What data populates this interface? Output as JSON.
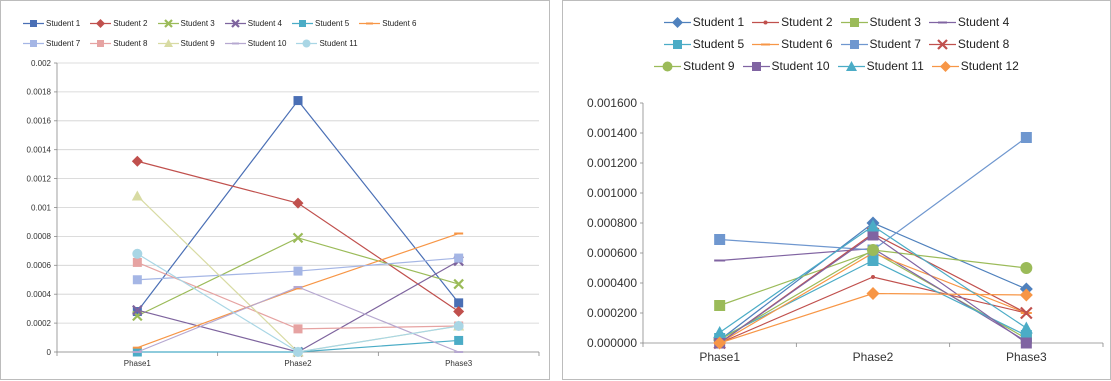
{
  "chart_data": [
    {
      "type": "line",
      "categories": [
        "Phase1",
        "Phase2",
        "Phase3"
      ],
      "ylim": [
        0,
        0.002
      ],
      "yticks": [
        "0",
        "0.0002",
        "0.0004",
        "0.0006",
        "0.0008",
        "0.001",
        "0.0012",
        "0.0014",
        "0.0016",
        "0.0018",
        "0.002"
      ],
      "grid": true,
      "legend": "top",
      "series": [
        {
          "name": "Student 1",
          "values": [
            0.00028,
            0.00174,
            0.00034
          ],
          "color": "#4a6fb5",
          "marker": "square"
        },
        {
          "name": "Student 2",
          "values": [
            0.00132,
            0.00103,
            0.00028
          ],
          "color": "#c0504d",
          "marker": "diamond"
        },
        {
          "name": "Student 3",
          "values": [
            0.00025,
            0.00079,
            0.00047
          ],
          "color": "#9bbb59",
          "marker": "x"
        },
        {
          "name": "Student 4",
          "values": [
            0.00029,
            0.0,
            0.00063
          ],
          "color": "#7e649e",
          "marker": "x"
        },
        {
          "name": "Student 5",
          "values": [
            0.0,
            0.0,
            8e-05
          ],
          "color": "#4bacc6",
          "marker": "square"
        },
        {
          "name": "Student 6",
          "values": [
            3e-05,
            0.00044,
            0.00082
          ],
          "color": "#f79646",
          "marker": "dash"
        },
        {
          "name": "Student 7",
          "values": [
            0.0005,
            0.00056,
            0.00065
          ],
          "color": "#a5b6e5",
          "marker": "square"
        },
        {
          "name": "Student 8",
          "values": [
            0.00062,
            0.00016,
            0.00018
          ],
          "color": "#e6a3a2",
          "marker": "square"
        },
        {
          "name": "Student 9",
          "values": [
            0.00108,
            0.0,
            0.00018
          ],
          "color": "#d8dba3",
          "marker": "triangle"
        },
        {
          "name": "Student 10",
          "values": [
            0.0,
            0.00045,
            0.0
          ],
          "color": "#b6a8d0",
          "marker": "dash"
        },
        {
          "name": "Student 11",
          "values": [
            0.00068,
            0.0,
            0.00018
          ],
          "color": "#a9d6e5",
          "marker": "circle"
        }
      ]
    },
    {
      "type": "line",
      "categories": [
        "Phase1",
        "Phase2",
        "Phase3"
      ],
      "ylim": [
        0,
        0.0016
      ],
      "yticks": [
        "0.000000",
        "0.000200",
        "0.000400",
        "0.000600",
        "0.000800",
        "0.001000",
        "0.001200",
        "0.001400",
        "0.001600"
      ],
      "grid": false,
      "legend": "top",
      "series": [
        {
          "name": "Student 1",
          "values": [
            2e-05,
            0.0008,
            0.00036
          ],
          "color": "#4f81bd",
          "marker": "diamond"
        },
        {
          "name": "Student 2",
          "values": [
            0.0,
            0.00044,
            0.0002
          ],
          "color": "#c0504d",
          "marker": "dot"
        },
        {
          "name": "Student 3",
          "values": [
            0.00025,
            0.00061,
            3e-05
          ],
          "color": "#9bbb59",
          "marker": "square"
        },
        {
          "name": "Student 4",
          "values": [
            0.00055,
            0.00063,
            1e-05
          ],
          "color": "#8064a2",
          "marker": "dash"
        },
        {
          "name": "Student 5",
          "values": [
            3e-05,
            0.00055,
            5e-05
          ],
          "color": "#4bacc6",
          "marker": "square"
        },
        {
          "name": "Student 6",
          "values": [
            0.0,
            0.0006,
            0.0002
          ],
          "color": "#f79646",
          "marker": "dash"
        },
        {
          "name": "Student 7",
          "values": [
            0.00069,
            0.00062,
            0.00137
          ],
          "color": "#6f97cf",
          "marker": "square"
        },
        {
          "name": "Student 8",
          "values": [
            0.0,
            0.00073,
            0.0002
          ],
          "color": "#c0504d",
          "marker": "x"
        },
        {
          "name": "Student 9",
          "values": [
            2e-05,
            0.00062,
            0.0005
          ],
          "color": "#9bbb59",
          "marker": "circle"
        },
        {
          "name": "Student 10",
          "values": [
            0.0,
            0.00072,
            0.0
          ],
          "color": "#8064a2",
          "marker": "square"
        },
        {
          "name": "Student 11",
          "values": [
            7e-05,
            0.00078,
            0.0001
          ],
          "color": "#4bacc6",
          "marker": "triangle"
        },
        {
          "name": "Student 12",
          "values": [
            0.0,
            0.00033,
            0.00032
          ],
          "color": "#f79646",
          "marker": "diamond"
        }
      ]
    }
  ]
}
